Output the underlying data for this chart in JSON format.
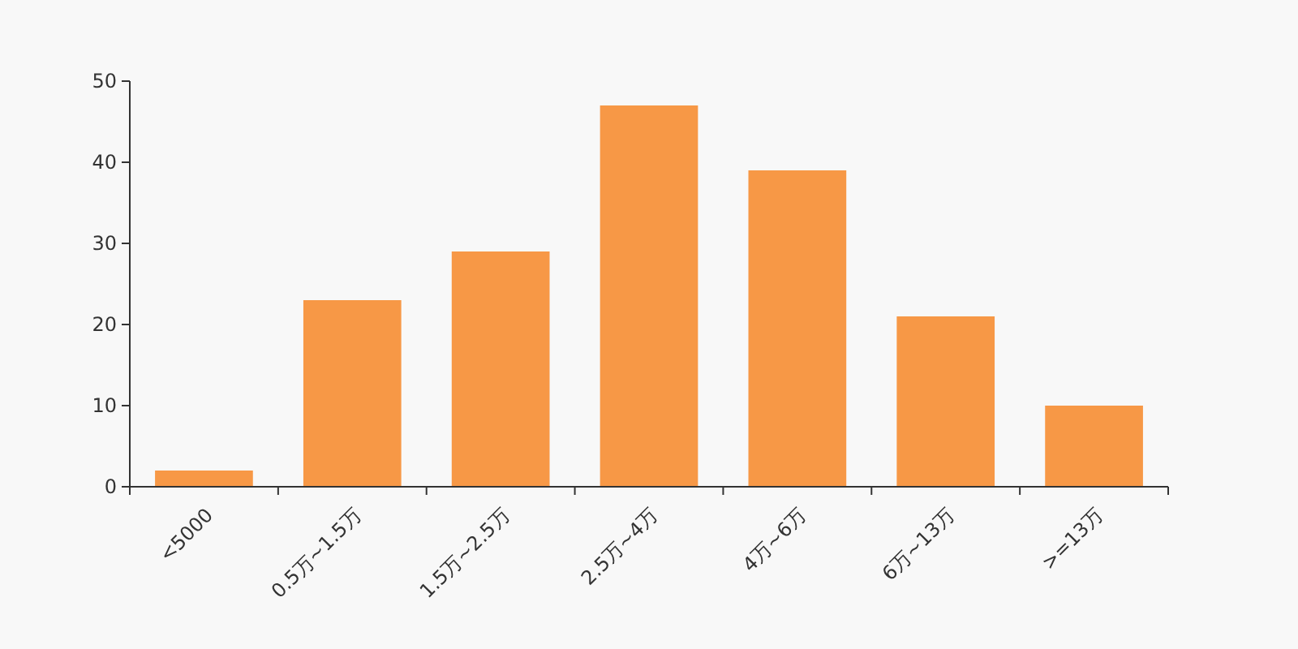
{
  "chart_data": {
    "type": "bar",
    "categories": [
      "<5000",
      "0.5万~1.5万",
      "1.5万~2.5万",
      "2.5万~4万",
      "4万~6万",
      "6万~13万",
      ">=13万"
    ],
    "values": [
      2,
      23,
      29,
      47,
      39,
      21,
      10
    ],
    "color": "#f79846",
    "ylim": [
      0,
      50
    ],
    "yticks": [
      0,
      10,
      20,
      30,
      40,
      50
    ],
    "grid": false
  }
}
